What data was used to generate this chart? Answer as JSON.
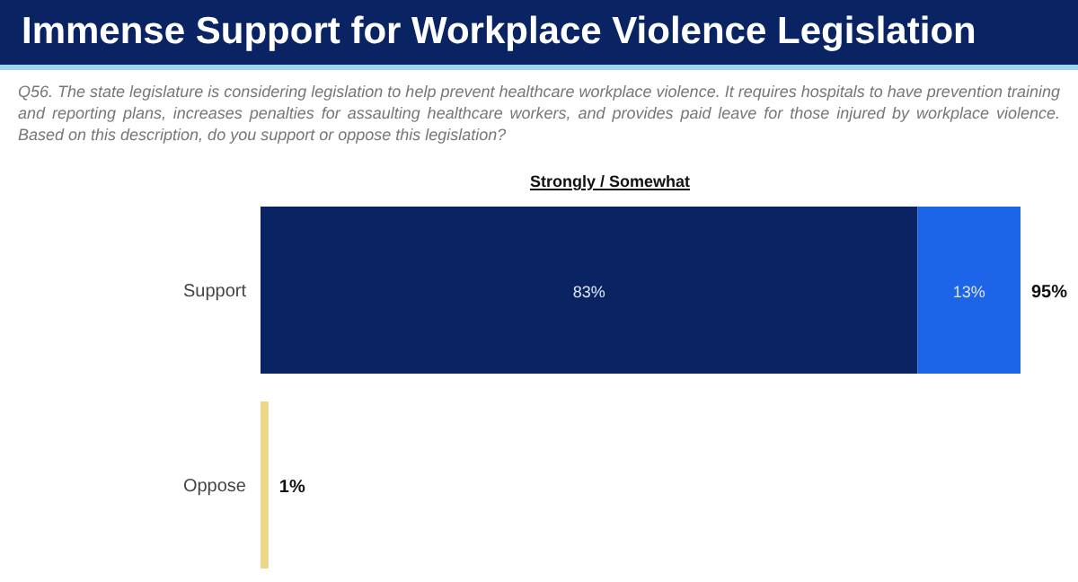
{
  "chart_data": {
    "type": "bar",
    "orientation": "horizontal",
    "stacked": true,
    "title": "Immense Support for Workplace Violence Legislation",
    "subtitle": "Q56. The state legislature is considering legislation to help prevent healthcare workplace violence. It requires hospitals to have prevention training and reporting plans, increases penalties for assaulting healthcare workers, and provides paid leave for those injured by workplace violence. Based on this description, do you support or oppose this legislation?",
    "annotations": [
      "Strongly / Somewhat"
    ],
    "categories": [
      "Support",
      "Oppose"
    ],
    "tick_labels": "y",
    "series": [
      {
        "colors": [
          "#0a2463",
          "#ecd68a"
        ],
        "values": [
          83,
          1
        ],
        "value_labels": [
          "83%",
          null
        ]
      },
      {
        "color": "#1c64e8",
        "values": [
          13,
          null
        ],
        "value_labels": [
          "13%",
          null
        ]
      }
    ],
    "totals": [
      "95%",
      "1%"
    ]
  }
}
